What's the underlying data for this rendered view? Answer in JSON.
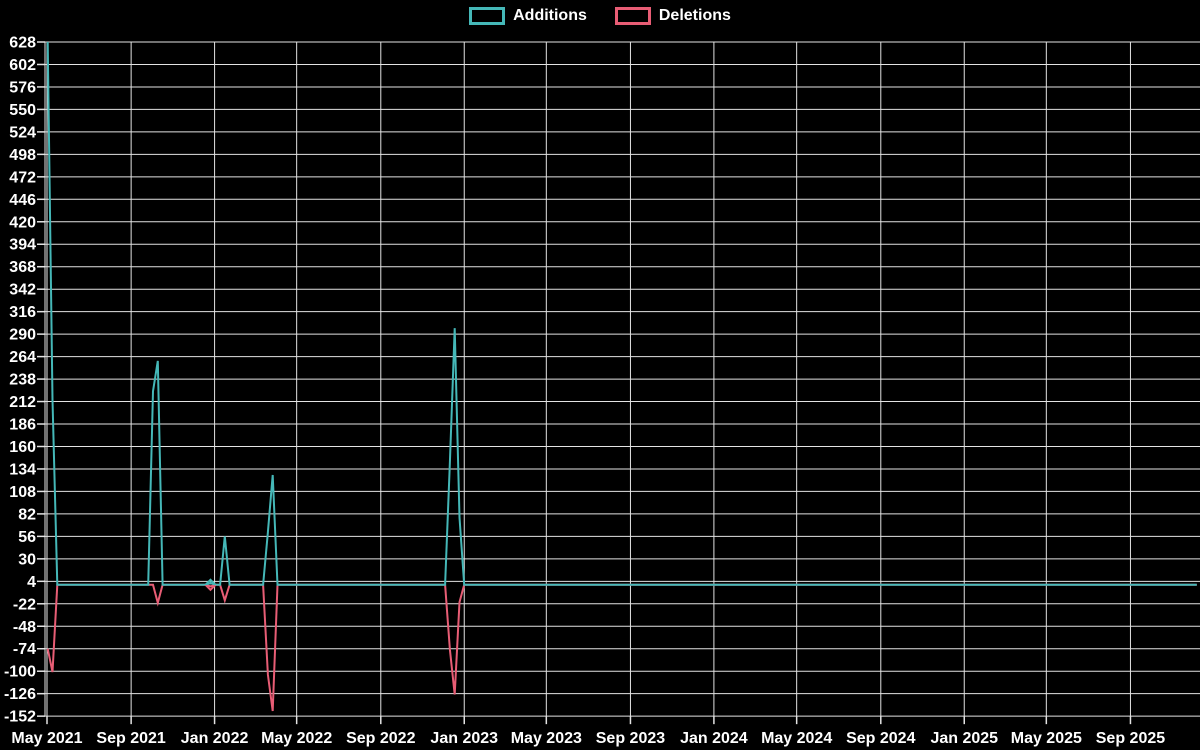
{
  "colors": {
    "background": "#000000",
    "grid": "#e3e3e3",
    "axis_text": "#ffffff",
    "additions": "#45b8b8",
    "deletions": "#e85d75"
  },
  "chart_data": {
    "type": "line",
    "title": "",
    "xlabel": "",
    "ylabel": "",
    "legend_position": "top-center",
    "grid": "on",
    "legend": [
      {
        "label": "Additions",
        "color": "#45b8b8"
      },
      {
        "label": "Deletions",
        "color": "#e85d75"
      }
    ],
    "y_axis": {
      "min": -152,
      "max": 628,
      "step": 26,
      "tick_labels": [
        "628",
        "602",
        "576",
        "550",
        "524",
        "498",
        "472",
        "446",
        "420",
        "394",
        "368",
        "342",
        "316",
        "290",
        "264",
        "238",
        "212",
        "186",
        "160",
        "134",
        "108",
        "82",
        "56",
        "30",
        "4",
        "-22",
        "-48",
        "-74",
        "-100",
        "-126",
        "-152"
      ]
    },
    "x_axis": {
      "ticks": [
        {
          "label": "May 2021",
          "date": "2021-05-01"
        },
        {
          "label": "Sep 2021",
          "date": "2021-09-01"
        },
        {
          "label": "Jan 2022",
          "date": "2022-01-01"
        },
        {
          "label": "May 2022",
          "date": "2022-05-01"
        },
        {
          "label": "Sep 2022",
          "date": "2022-09-01"
        },
        {
          "label": "Jan 2023",
          "date": "2023-01-01"
        },
        {
          "label": "May 2023",
          "date": "2023-05-01"
        },
        {
          "label": "Sep 2023",
          "date": "2023-09-01"
        },
        {
          "label": "Jan 2024",
          "date": "2024-01-01"
        },
        {
          "label": "May 2024",
          "date": "2024-05-01"
        },
        {
          "label": "Sep 2024",
          "date": "2024-09-01"
        },
        {
          "label": "Jan 2025",
          "date": "2025-01-01"
        },
        {
          "label": "May 2025",
          "date": "2025-05-01"
        },
        {
          "label": "Sep 2025",
          "date": "2025-09-01"
        }
      ]
    },
    "series": [
      {
        "name": "Additions",
        "color": "#45b8b8",
        "start_week": "2021-05-02",
        "end_week": "2025-12-07",
        "week_step_days": 7,
        "default_value": 0,
        "points": [
          {
            "week": "2021-05-02",
            "value": 628
          },
          {
            "week": "2021-05-09",
            "value": 214
          },
          {
            "week": "2021-10-03",
            "value": 224
          },
          {
            "week": "2021-10-10",
            "value": 259
          },
          {
            "week": "2021-12-26",
            "value": 2
          },
          {
            "week": "2022-01-16",
            "value": 56
          },
          {
            "week": "2022-03-20",
            "value": 61
          },
          {
            "week": "2022-03-27",
            "value": 127
          },
          {
            "week": "2022-12-11",
            "value": 142
          },
          {
            "week": "2022-12-18",
            "value": 297
          },
          {
            "week": "2022-12-25",
            "value": 78
          }
        ]
      },
      {
        "name": "Deletions",
        "color": "#e85d75",
        "start_week": "2021-05-02",
        "end_week": "2025-12-07",
        "week_step_days": 7,
        "default_value": 0,
        "points": [
          {
            "week": "2021-05-02",
            "value": -74
          },
          {
            "week": "2021-05-09",
            "value": -101
          },
          {
            "week": "2021-10-10",
            "value": -21
          },
          {
            "week": "2021-12-26",
            "value": -2
          },
          {
            "week": "2022-01-16",
            "value": -18
          },
          {
            "week": "2022-03-20",
            "value": -104
          },
          {
            "week": "2022-03-27",
            "value": -146
          },
          {
            "week": "2022-12-11",
            "value": -75
          },
          {
            "week": "2022-12-18",
            "value": -127
          },
          {
            "week": "2022-12-25",
            "value": -20
          }
        ]
      }
    ],
    "isolated_point_marker": {
      "week": "2021-12-26",
      "shape": "diamond-outline"
    }
  }
}
